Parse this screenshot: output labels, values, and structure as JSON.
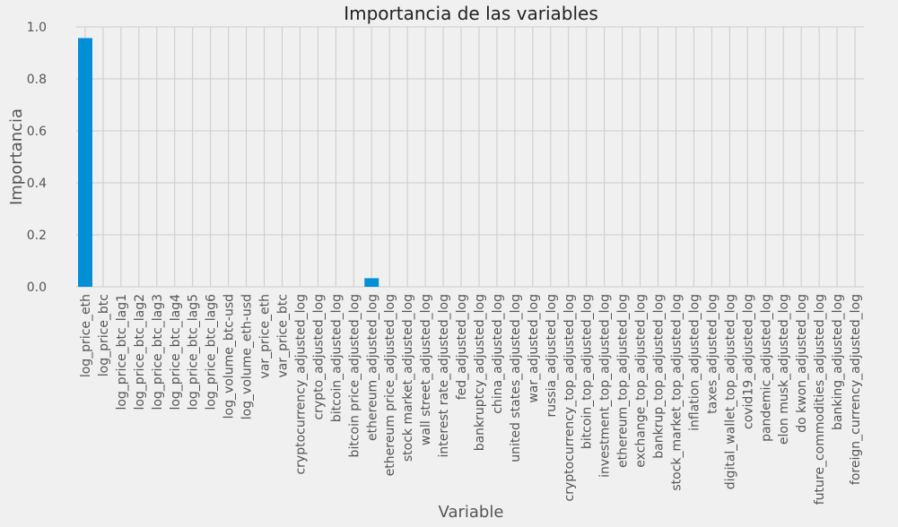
{
  "chart_data": {
    "type": "bar",
    "title": "Importancia de las variables",
    "xlabel": "Variable",
    "ylabel": "Importancia",
    "ylim": [
      0,
      1.0
    ],
    "yticks": [
      0.0,
      0.2,
      0.4,
      0.6,
      0.8,
      1.0
    ],
    "grid": true,
    "bar_color": "#008fd5",
    "background": "#f0f0f0",
    "grid_color": "#cbcbcb",
    "categories": [
      "log_price_eth",
      "log_price_btc",
      "log_price_btc_lag1",
      "log_price_btc_lag2",
      "log_price_btc_lag3",
      "log_price_btc_lag4",
      "log_price_btc_lag5",
      "log_price_btc_lag6",
      "log_volume_btc-usd",
      "log_volume_eth-usd",
      "var_price_eth",
      "var_price_btc",
      "cryptocurrency_adjusted_log",
      "crypto_adjusted_log",
      "bitcoin_adjusted_log",
      "bitcoin price_adjusted_log",
      "ethereum_adjusted_log",
      "ethereum price_adjusted_log",
      "stock market_adjusted_log",
      "wall street_adjusted_log",
      "interest rate_adjusted_log",
      "fed_adjusted_log",
      "bankruptcy_adjusted_log",
      "china_adjusted_log",
      "united states_adjusted_log",
      "war_adjusted_log",
      "russia_adjusted_log",
      "cryptocurrency_top_adjusted_log",
      "bitcoin_top_adjusted_log",
      "investment_top_adjusted_log",
      "ethereum_top_adjusted_log",
      "exchange_top_adjusted_log",
      "bankrup_top_adjusted_log",
      "stock_market_top_adjusted_log",
      "inflation_adjusted_log",
      "taxes_adjusted_log",
      "digital_wallet_top_adjusted_log",
      "covid19_adjusted_log",
      "pandemic_adjusted_log",
      "elon musk_adjusted_log",
      "do kwon_adjusted_log",
      "future_commodities_adjusted_log",
      "banking_adjusted_log",
      "foreign_currency_adjusted_log"
    ],
    "values": [
      0.957,
      0,
      0,
      0,
      0,
      0,
      0,
      0,
      0,
      0,
      0,
      0,
      0,
      0,
      0,
      0,
      0.033,
      0,
      0,
      0,
      0,
      0,
      0,
      0,
      0,
      0,
      0,
      0,
      0,
      0,
      0,
      0,
      0,
      0,
      0,
      0,
      0,
      0,
      0,
      0,
      0,
      0,
      0,
      0
    ]
  }
}
